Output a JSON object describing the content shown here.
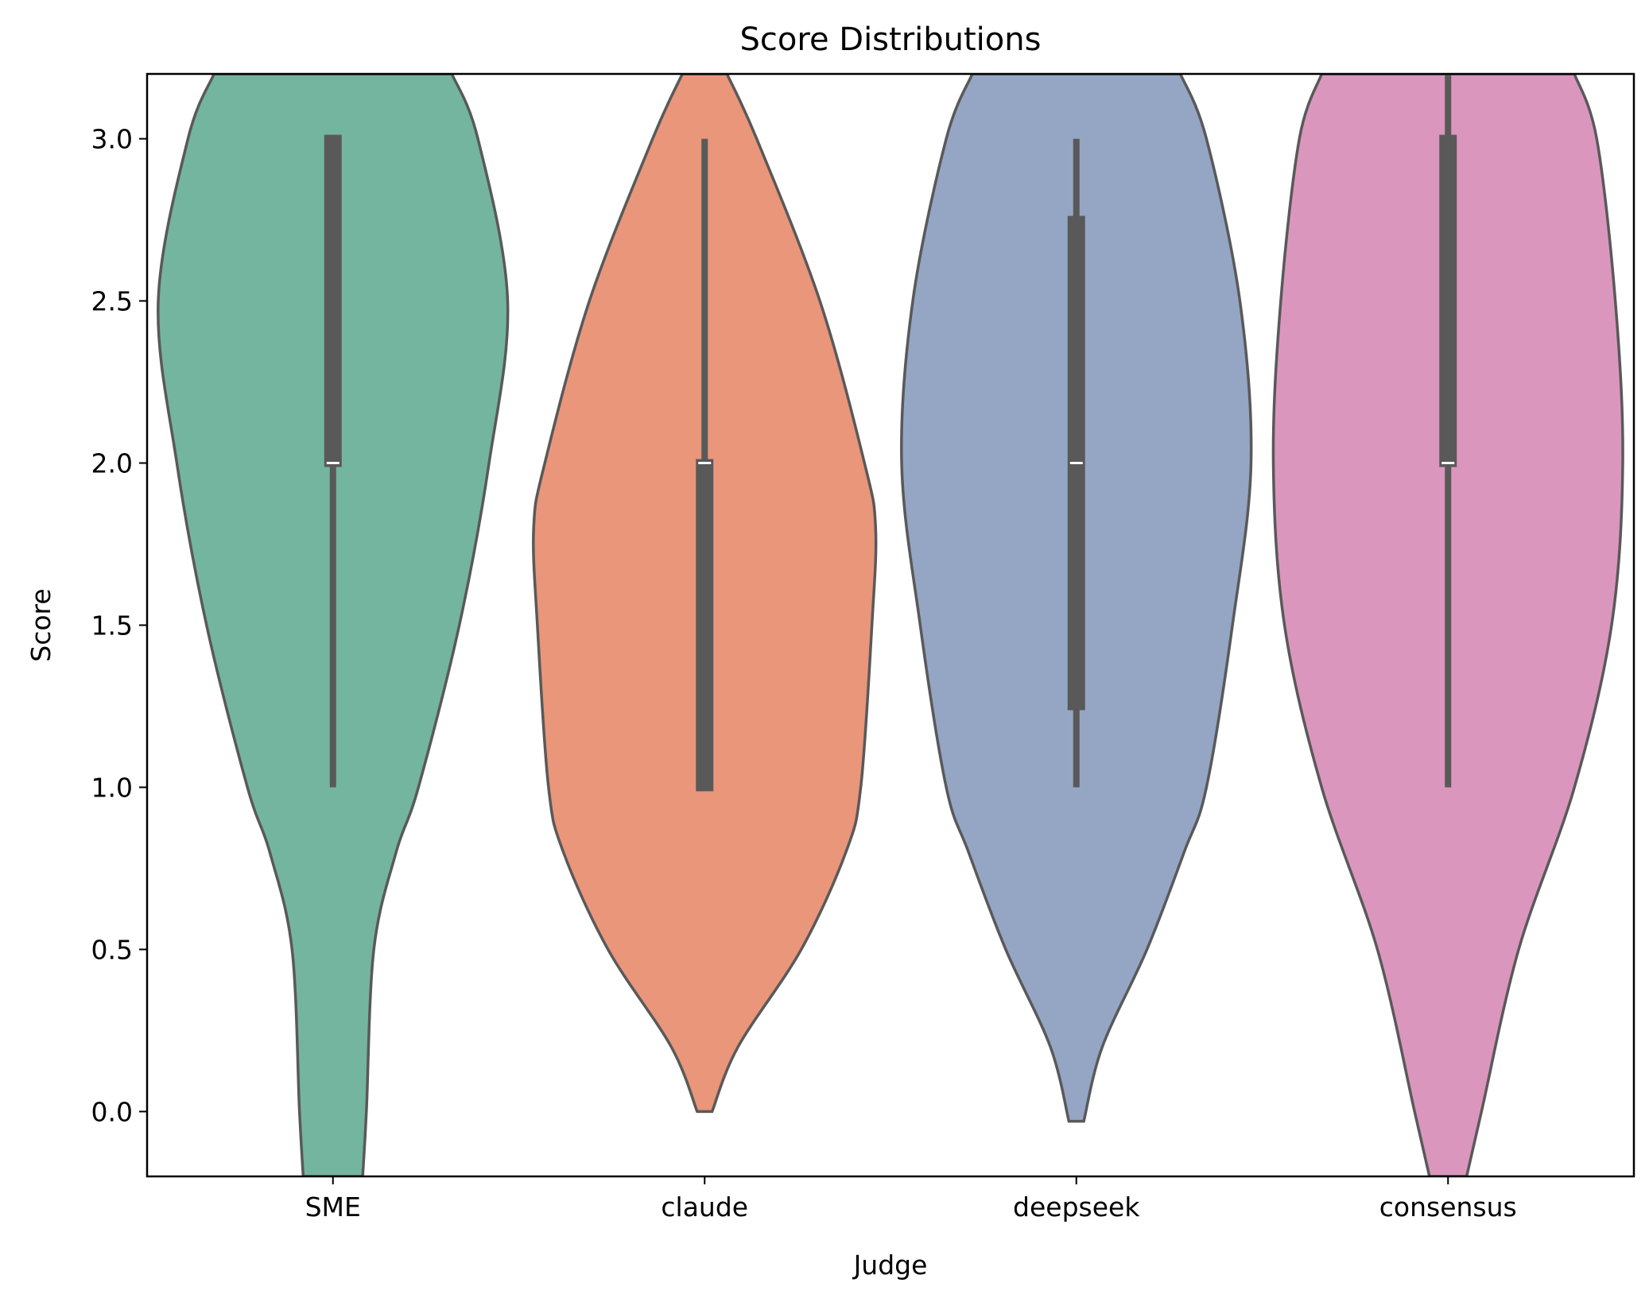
{
  "chart_data": {
    "type": "violin",
    "title": "Score Distributions",
    "xlabel": "Judge",
    "ylabel": "Score",
    "ylim": [
      -0.2,
      3.2
    ],
    "yticks": [
      0.0,
      0.5,
      1.0,
      1.5,
      2.0,
      2.5,
      3.0
    ],
    "ytick_labels": [
      "0.0",
      "0.5",
      "1.0",
      "1.5",
      "2.0",
      "2.5",
      "3.0"
    ],
    "categories": [
      "SME",
      "claude",
      "deepseek",
      "consensus"
    ],
    "grid": false,
    "colors": {
      "SME": "#74b5a0",
      "claude": "#e9967a",
      "deepseek": "#95a5c4",
      "consensus": "#db96be",
      "outline": "#595959",
      "box": "#595959",
      "median": "#ffffff"
    },
    "series": [
      {
        "name": "SME",
        "min": 1.0,
        "q1": 2.0,
        "median": 2.0,
        "q3": 3.0,
        "max": 3.0,
        "density": [
          [
            -0.2,
            0.08
          ],
          [
            0.0,
            0.09
          ],
          [
            0.5,
            0.11
          ],
          [
            0.8,
            0.17
          ],
          [
            1.0,
            0.23
          ],
          [
            1.5,
            0.34
          ],
          [
            2.0,
            0.42
          ],
          [
            2.5,
            0.47
          ],
          [
            3.0,
            0.39
          ],
          [
            3.2,
            0.32
          ]
        ]
      },
      {
        "name": "claude",
        "min": 1.0,
        "q1": 1.0,
        "median": 2.0,
        "q3": 2.0,
        "max": 3.0,
        "density": [
          [
            0.0,
            0.02
          ],
          [
            0.2,
            0.09
          ],
          [
            0.5,
            0.26
          ],
          [
            0.8,
            0.38
          ],
          [
            1.0,
            0.42
          ],
          [
            1.5,
            0.45
          ],
          [
            1.8,
            0.46
          ],
          [
            2.0,
            0.43
          ],
          [
            2.5,
            0.31
          ],
          [
            3.0,
            0.14
          ],
          [
            3.2,
            0.06
          ]
        ]
      },
      {
        "name": "deepseek",
        "min": 1.0,
        "q1": 1.25,
        "median": 2.0,
        "q3": 2.75,
        "max": 3.0,
        "density": [
          [
            -0.03,
            0.02
          ],
          [
            0.2,
            0.07
          ],
          [
            0.5,
            0.19
          ],
          [
            0.8,
            0.29
          ],
          [
            1.0,
            0.35
          ],
          [
            1.5,
            0.42
          ],
          [
            2.0,
            0.47
          ],
          [
            2.5,
            0.44
          ],
          [
            3.0,
            0.35
          ],
          [
            3.2,
            0.28
          ]
        ]
      },
      {
        "name": "consensus",
        "min": 1.0,
        "q1": 2.0,
        "median": 2.0,
        "q3": 3.0,
        "max": 3.2,
        "density": [
          [
            -0.2,
            0.05
          ],
          [
            0.0,
            0.09
          ],
          [
            0.5,
            0.19
          ],
          [
            1.0,
            0.34
          ],
          [
            1.5,
            0.44
          ],
          [
            2.0,
            0.47
          ],
          [
            2.5,
            0.45
          ],
          [
            3.0,
            0.4
          ],
          [
            3.2,
            0.34
          ]
        ]
      }
    ]
  }
}
